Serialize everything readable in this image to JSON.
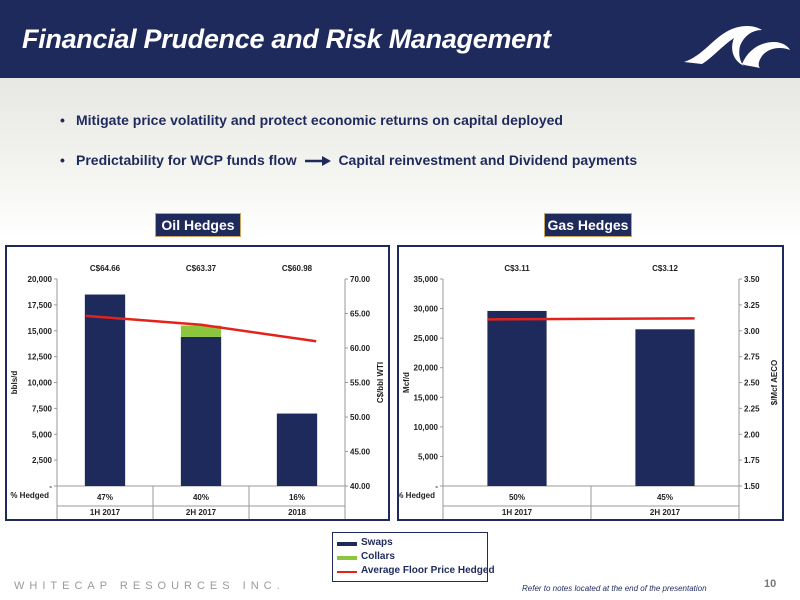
{
  "header": {
    "title": "Financial Prudence and Risk Management"
  },
  "bullets": {
    "b1": "Mitigate price volatility and protect economic returns on capital deployed",
    "b2_left": "Predictability for WCP funds flow",
    "b2_right": "Capital reinvestment and Dividend payments"
  },
  "oil_tag": "Oil Hedges",
  "gas_tag": "Gas Hedges",
  "legend": {
    "swaps": "Swaps",
    "collars": "Collars",
    "floor": "Average Floor Price Hedged"
  },
  "footer": {
    "company": "WHITECAP RESOURCES INC.",
    "note": "Refer to notes located at the end of the presentation",
    "page": "10"
  },
  "colors": {
    "navy": "#1f2a5c",
    "collars": "#8cc63f",
    "floor": "#e3231b",
    "gold": "#c8a55a"
  },
  "chart_data": [
    {
      "type": "bar",
      "categories": [
        "1H 2017",
        "2H 2017",
        "2018"
      ],
      "series": [
        {
          "name": "Swaps",
          "values": [
            18500,
            14400,
            7000
          ]
        },
        {
          "name": "Collars",
          "values": [
            0,
            1100,
            0
          ]
        },
        {
          "name": "Average Floor Price Hedged",
          "values": [
            64.66,
            63.37,
            60.98
          ]
        }
      ],
      "price_labels": [
        "C$64.66",
        "C$63.37",
        "C$60.98"
      ],
      "pct_hedged": [
        "47%",
        "40%",
        "16%"
      ],
      "pct_label": "% Hedged",
      "ylabel": "bbls/d",
      "y2label": "C$/bbl WTI",
      "ylim": [
        0,
        20000
      ],
      "y_ticks": [
        "-",
        "2,500",
        "5,000",
        "7,500",
        "10,000",
        "12,500",
        "15,000",
        "17,500",
        "20,000"
      ],
      "y2lim": [
        40,
        70
      ],
      "y2_ticks": [
        "40.00",
        "45.00",
        "50.00",
        "55.00",
        "60.00",
        "65.00",
        "70.00"
      ]
    },
    {
      "type": "bar",
      "categories": [
        "1H 2017",
        "2H 2017"
      ],
      "series": [
        {
          "name": "Swaps",
          "values": [
            29600,
            26500
          ]
        },
        {
          "name": "Average Floor Price Hedged",
          "values": [
            3.11,
            3.12
          ]
        }
      ],
      "price_labels": [
        "C$3.11",
        "C$3.12"
      ],
      "pct_hedged": [
        "50%",
        "45%"
      ],
      "pct_label": "% Hedged",
      "ylabel": "Mcf/d",
      "y2label": "$/Mcf AECO",
      "ylim": [
        0,
        35000
      ],
      "y_ticks": [
        "-",
        "5,000",
        "10,000",
        "15,000",
        "20,000",
        "25,000",
        "30,000",
        "35,000"
      ],
      "y2lim": [
        1.5,
        3.5
      ],
      "y2_ticks": [
        "1.50",
        "1.75",
        "2.00",
        "2.25",
        "2.50",
        "2.75",
        "3.00",
        "3.25",
        "3.50"
      ]
    }
  ]
}
